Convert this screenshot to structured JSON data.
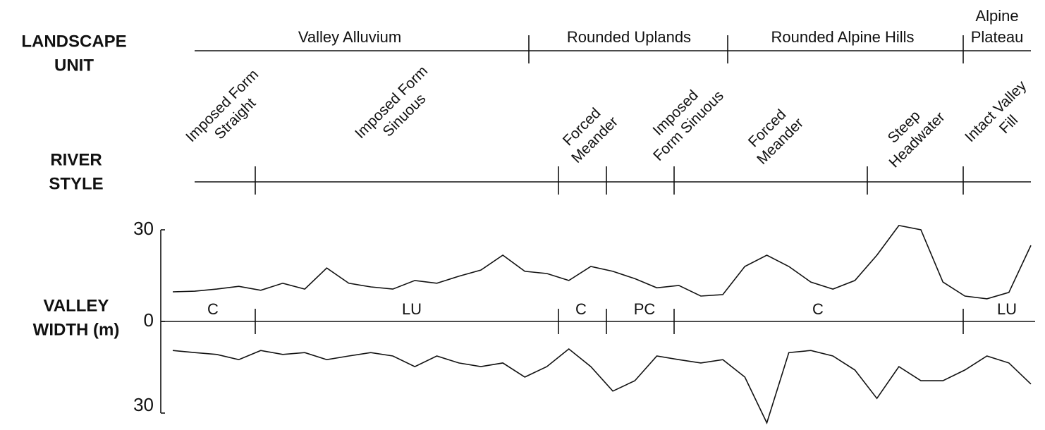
{
  "chart_data": {
    "type": "line",
    "row_labels": [
      [
        "LANDSCAPE",
        "UNIT"
      ],
      [
        "RIVER",
        "STYLE"
      ],
      [
        "VALLEY",
        "WIDTH (m)"
      ]
    ],
    "landscape_units": [
      [
        "Valley Alluvium"
      ],
      [
        "Rounded Uplands"
      ],
      [
        "Rounded Alpine Hills"
      ],
      [
        "Alpine",
        "Plateau"
      ]
    ],
    "river_styles": [
      [
        "Imposed Form",
        "Straight"
      ],
      [
        "Imposed Form",
        "Sinuous"
      ],
      [
        "Forced",
        "Meander"
      ],
      [
        "Imposed",
        "Form Sinuous"
      ],
      [
        "Forced",
        "Meander"
      ],
      [
        "Steep",
        "Headwater"
      ],
      [
        "Intact Valley",
        "Fill"
      ]
    ],
    "confinement": [
      "C",
      "LU",
      "C",
      "PC",
      "C",
      "LU"
    ],
    "ylim": [
      -30,
      30
    ],
    "yticks": [
      {
        "value": -30,
        "label": "30"
      },
      0,
      30
    ],
    "series": [
      {
        "color": "#111111",
        "values": [
          9.7,
          9.9,
          10.6,
          11.5,
          10.2,
          12.5,
          10.6,
          17.5,
          12.5,
          11.3,
          10.6,
          13.4,
          12.5,
          14.8,
          16.8,
          21.7,
          16.4,
          15.7,
          13.4,
          18,
          16.4,
          14,
          11,
          11.8,
          8.3,
          8.8,
          18,
          21.7,
          18,
          12.9,
          10.6,
          13.4,
          21.7,
          31.4,
          30,
          12.9,
          8.3,
          7.4,
          9.5,
          24.9
        ]
      },
      {
        "color": "#111111",
        "values": [
          -9.5,
          -10.2,
          -10.8,
          -12.5,
          -9.5,
          -10.8,
          -10.2,
          -12.5,
          -11.3,
          -10.2,
          -11.3,
          -14.8,
          -11.3,
          -13.6,
          -14.8,
          -13.6,
          -18.2,
          -14.8,
          -9,
          -14.8,
          -22.8,
          -19.4,
          -11.3,
          -12.5,
          -13.6,
          -12.5,
          -18.2,
          -33.2,
          -10.2,
          -9.5,
          -11.3,
          -15.9,
          -25.2,
          -14.8,
          -19.4,
          -19.4,
          -15.9,
          -11.3,
          -13.6,
          -20.5
        ]
      }
    ]
  }
}
